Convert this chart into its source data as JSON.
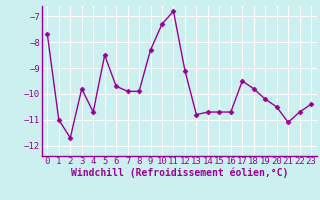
{
  "x": [
    0,
    1,
    2,
    3,
    4,
    5,
    6,
    7,
    8,
    9,
    10,
    11,
    12,
    13,
    14,
    15,
    16,
    17,
    18,
    19,
    20,
    21,
    22,
    23
  ],
  "y": [
    -7.7,
    -11.0,
    -11.7,
    -9.8,
    -10.7,
    -8.5,
    -9.7,
    -9.9,
    -9.9,
    -8.3,
    -7.3,
    -6.8,
    -9.1,
    -10.8,
    -10.7,
    -10.7,
    -10.7,
    -9.5,
    -9.8,
    -10.2,
    -10.5,
    -11.1,
    -10.7,
    -10.4
  ],
  "xlim": [
    -0.5,
    23.5
  ],
  "ylim": [
    -12.4,
    -6.6
  ],
  "yticks": [
    -12,
    -11,
    -10,
    -9,
    -8,
    -7
  ],
  "xticks": [
    0,
    1,
    2,
    3,
    4,
    5,
    6,
    7,
    8,
    9,
    10,
    11,
    12,
    13,
    14,
    15,
    16,
    17,
    18,
    19,
    20,
    21,
    22,
    23
  ],
  "line_color": "#990099",
  "marker": "D",
  "marker_size": 2.5,
  "bg_color": "#ccf0f0",
  "grid_color": "#ffffff",
  "xlabel": "Windchill (Refroidissement éolien,°C)",
  "xlabel_fontsize": 7,
  "tick_fontsize": 6.5,
  "line_width": 1.0,
  "spine_color": "#888888"
}
